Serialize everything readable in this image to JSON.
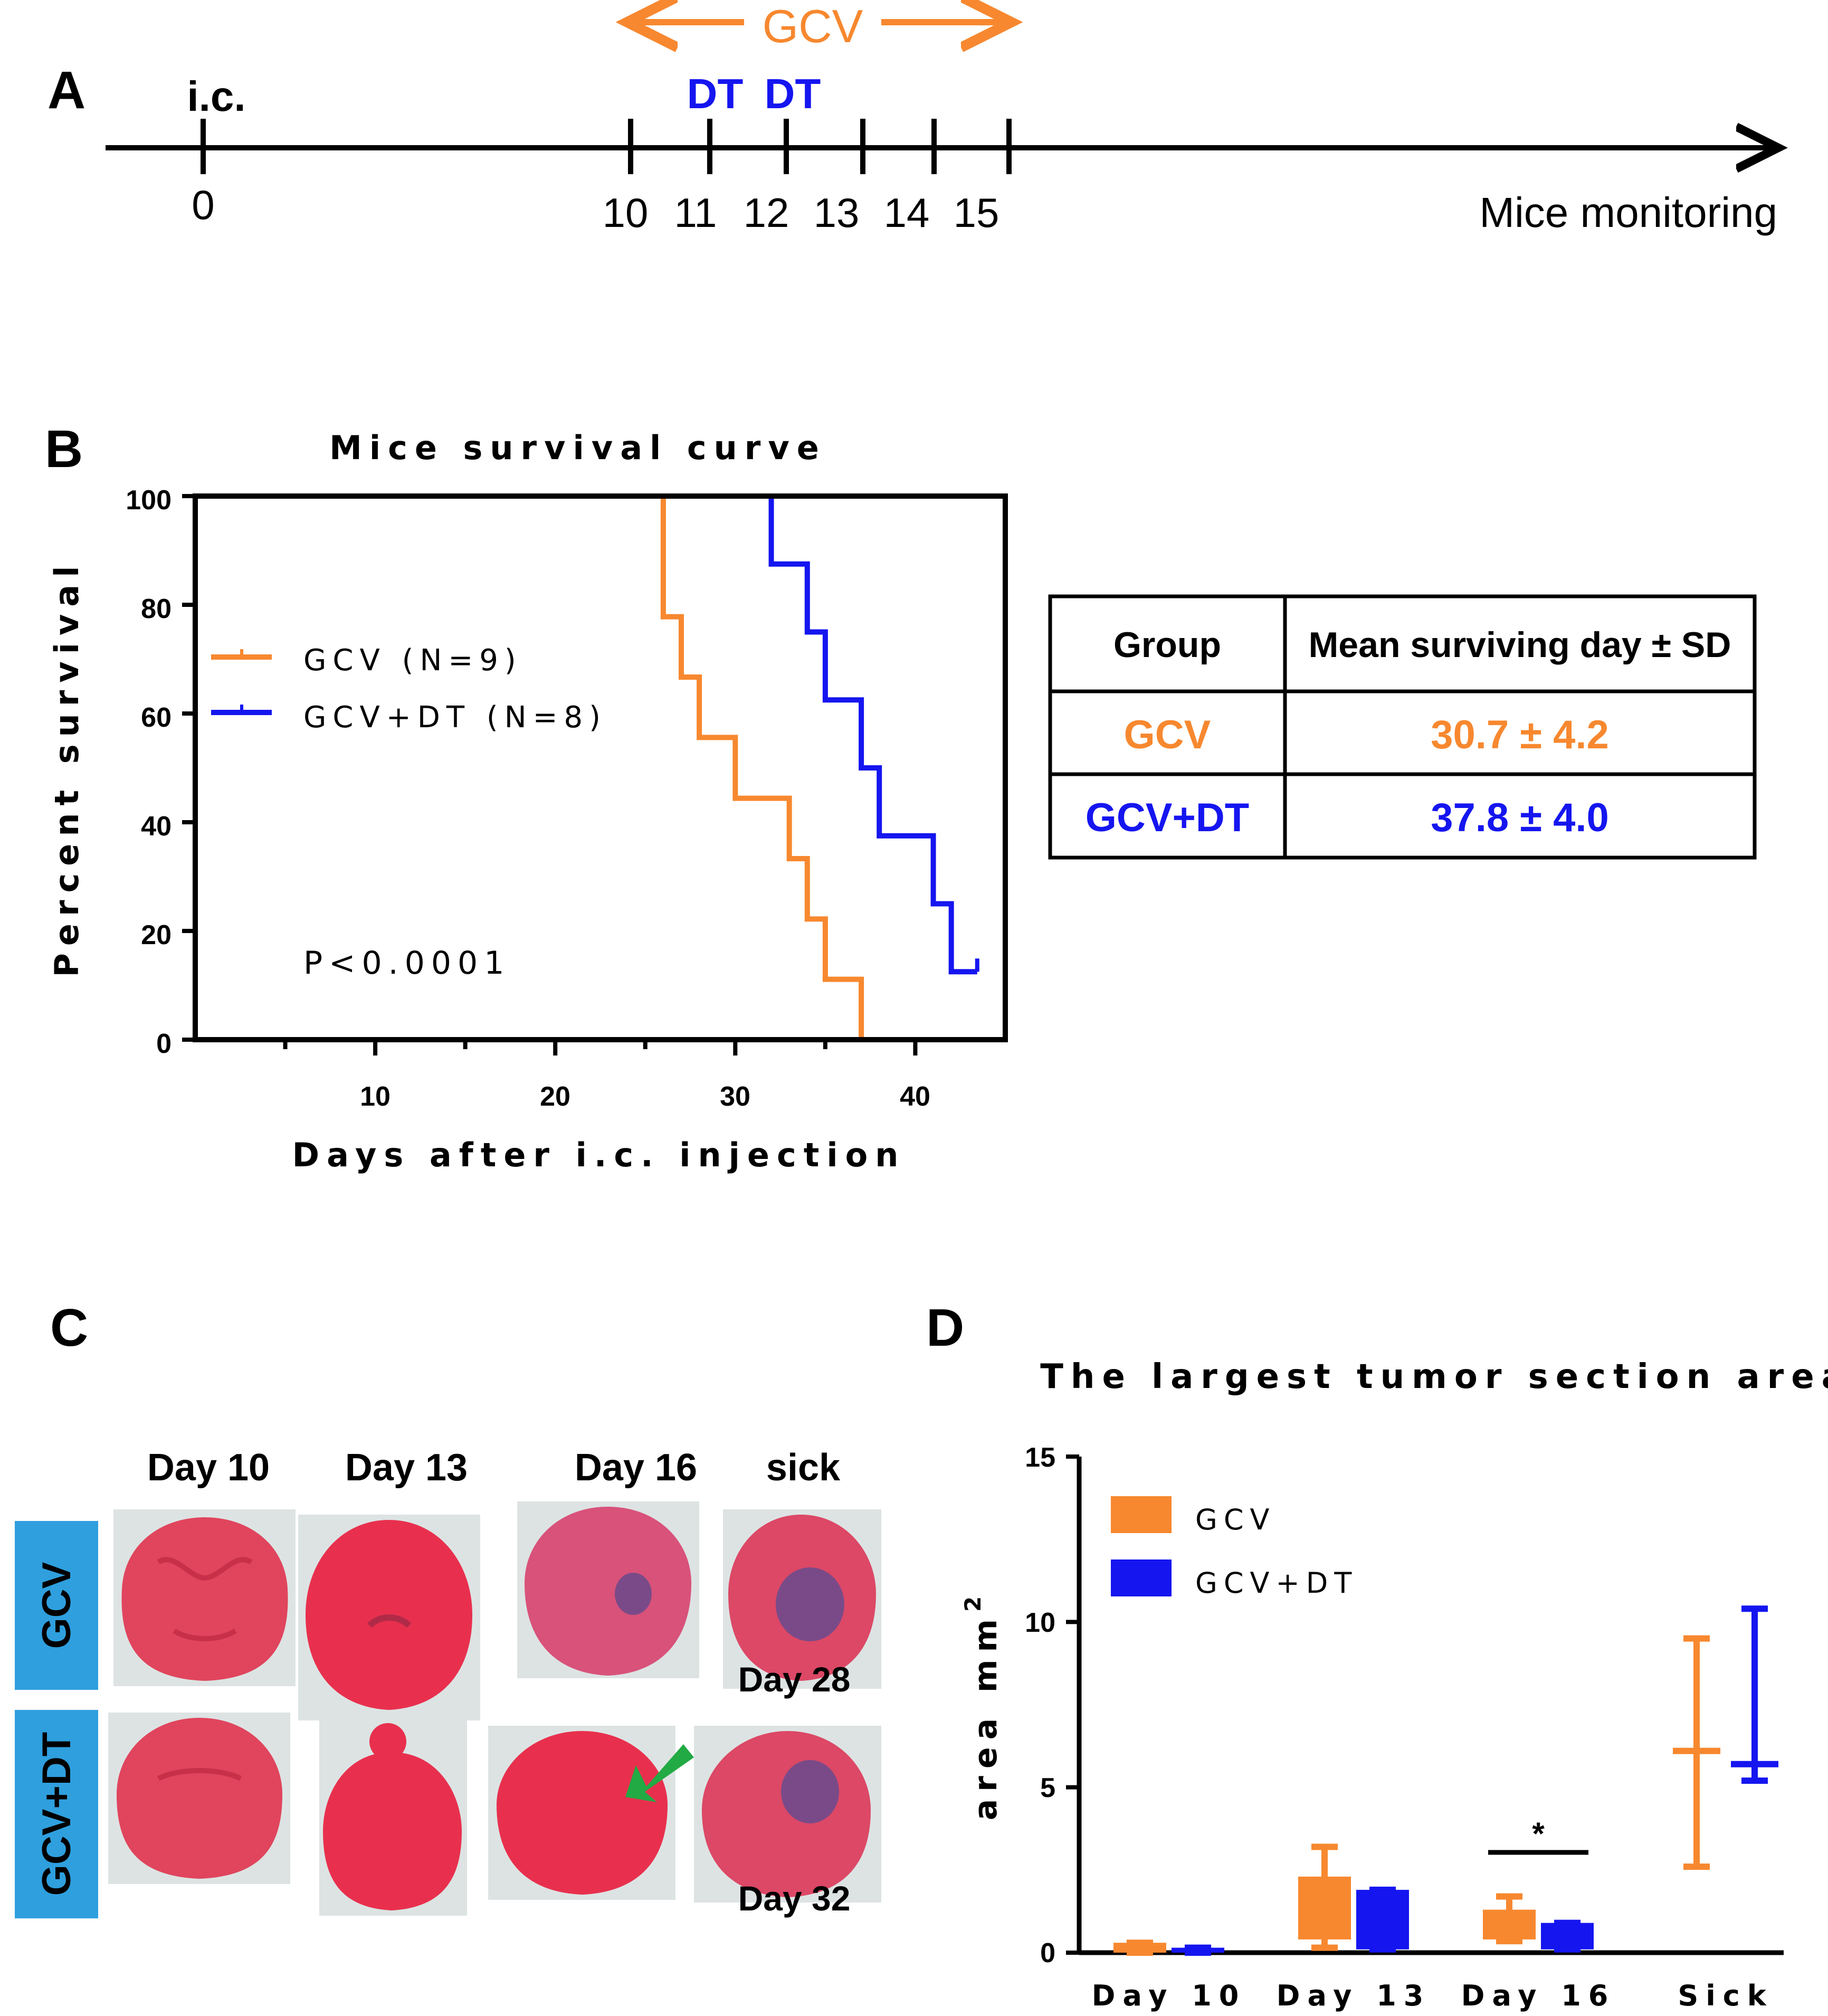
{
  "colors": {
    "gcv": "#f7882f",
    "gcvdt": "#1515f0",
    "green": "#22aa44",
    "band": "#2f9fde",
    "tissue": "#e0455d",
    "tumor": "#7a4a88",
    "black": "#000000"
  },
  "panelA": {
    "label": "A",
    "treatment": "GCV",
    "ic_label": "i.c.",
    "dt_labels": [
      "DT",
      "DT"
    ],
    "ticks": [
      "0",
      "10",
      "11",
      "12",
      "13",
      "14",
      "15"
    ],
    "end_label": "Mice monitoring"
  },
  "panelB": {
    "label": "B"
  },
  "table": {
    "headers": [
      "Group",
      "Mean surviving day ± SD"
    ],
    "rows": [
      {
        "group": "GCV",
        "value": "30.7 ± 4.2"
      },
      {
        "group": "GCV+DT",
        "value": "37.8 ± 4.0"
      }
    ]
  },
  "panelC": {
    "label": "C",
    "columns": [
      "Day 10",
      "Day 13",
      "Day 16",
      "sick"
    ],
    "rows": [
      "GCV",
      "GCV+DT"
    ],
    "sick_days": [
      "Day 28",
      "Day 32"
    ]
  },
  "panelD": {
    "label": "D"
  },
  "chart_data": [
    {
      "type": "line",
      "title": "Mice survival curve",
      "xlabel": "Days after i.c. injection",
      "ylabel": "Percent survival",
      "xlim": [
        0,
        45
      ],
      "ylim": [
        0,
        100
      ],
      "xticks": [
        "10",
        "20",
        "30",
        "40"
      ],
      "yticks": [
        "0",
        "20",
        "40",
        "60",
        "80",
        "100"
      ],
      "annotation": "P<0.0001",
      "series": [
        {
          "name": "GCV (N=9)",
          "x": [
            0,
            26,
            27,
            28,
            30,
            33,
            34,
            35,
            37
          ],
          "y": [
            100,
            77.8,
            66.7,
            55.6,
            44.4,
            33.3,
            22.2,
            11.1,
            0
          ]
        },
        {
          "name": "GCV+DT (N=8)",
          "x": [
            0,
            32,
            34,
            35,
            37,
            38,
            41,
            42,
            43
          ],
          "y": [
            100,
            87.5,
            75,
            62.5,
            50,
            37.5,
            25,
            12.5,
            12.5
          ]
        }
      ]
    },
    {
      "type": "bar",
      "title": "The largest tumor section area",
      "ylabel": "area mm",
      "ylabel_sup": "2",
      "ylim": [
        0,
        15
      ],
      "yticks": [
        "0",
        "5",
        "10",
        "15"
      ],
      "categories": [
        "Day 10",
        "Day 13",
        "Day 16",
        "Sick"
      ],
      "significance": "*",
      "series": [
        {
          "name": "GCV",
          "q1": [
            0.0,
            0.4,
            0.4,
            2.6
          ],
          "q3": [
            0.3,
            2.3,
            1.3,
            9.5
          ],
          "median": [
            0.15,
            1.2,
            0.9,
            6.1
          ],
          "min": [
            0.0,
            0.15,
            0.35,
            2.6
          ],
          "max": [
            0.3,
            3.2,
            1.7,
            9.5
          ]
        },
        {
          "name": "GCV+DT",
          "q1": [
            0.0,
            0.1,
            0.1,
            5.2
          ],
          "q3": [
            0.15,
            1.9,
            0.9,
            10.4
          ],
          "median": [
            0.07,
            1.6,
            0.7,
            5.7
          ],
          "min": [
            0.0,
            0.1,
            0.1,
            5.2
          ],
          "max": [
            0.15,
            1.9,
            0.9,
            10.4
          ]
        }
      ]
    }
  ]
}
